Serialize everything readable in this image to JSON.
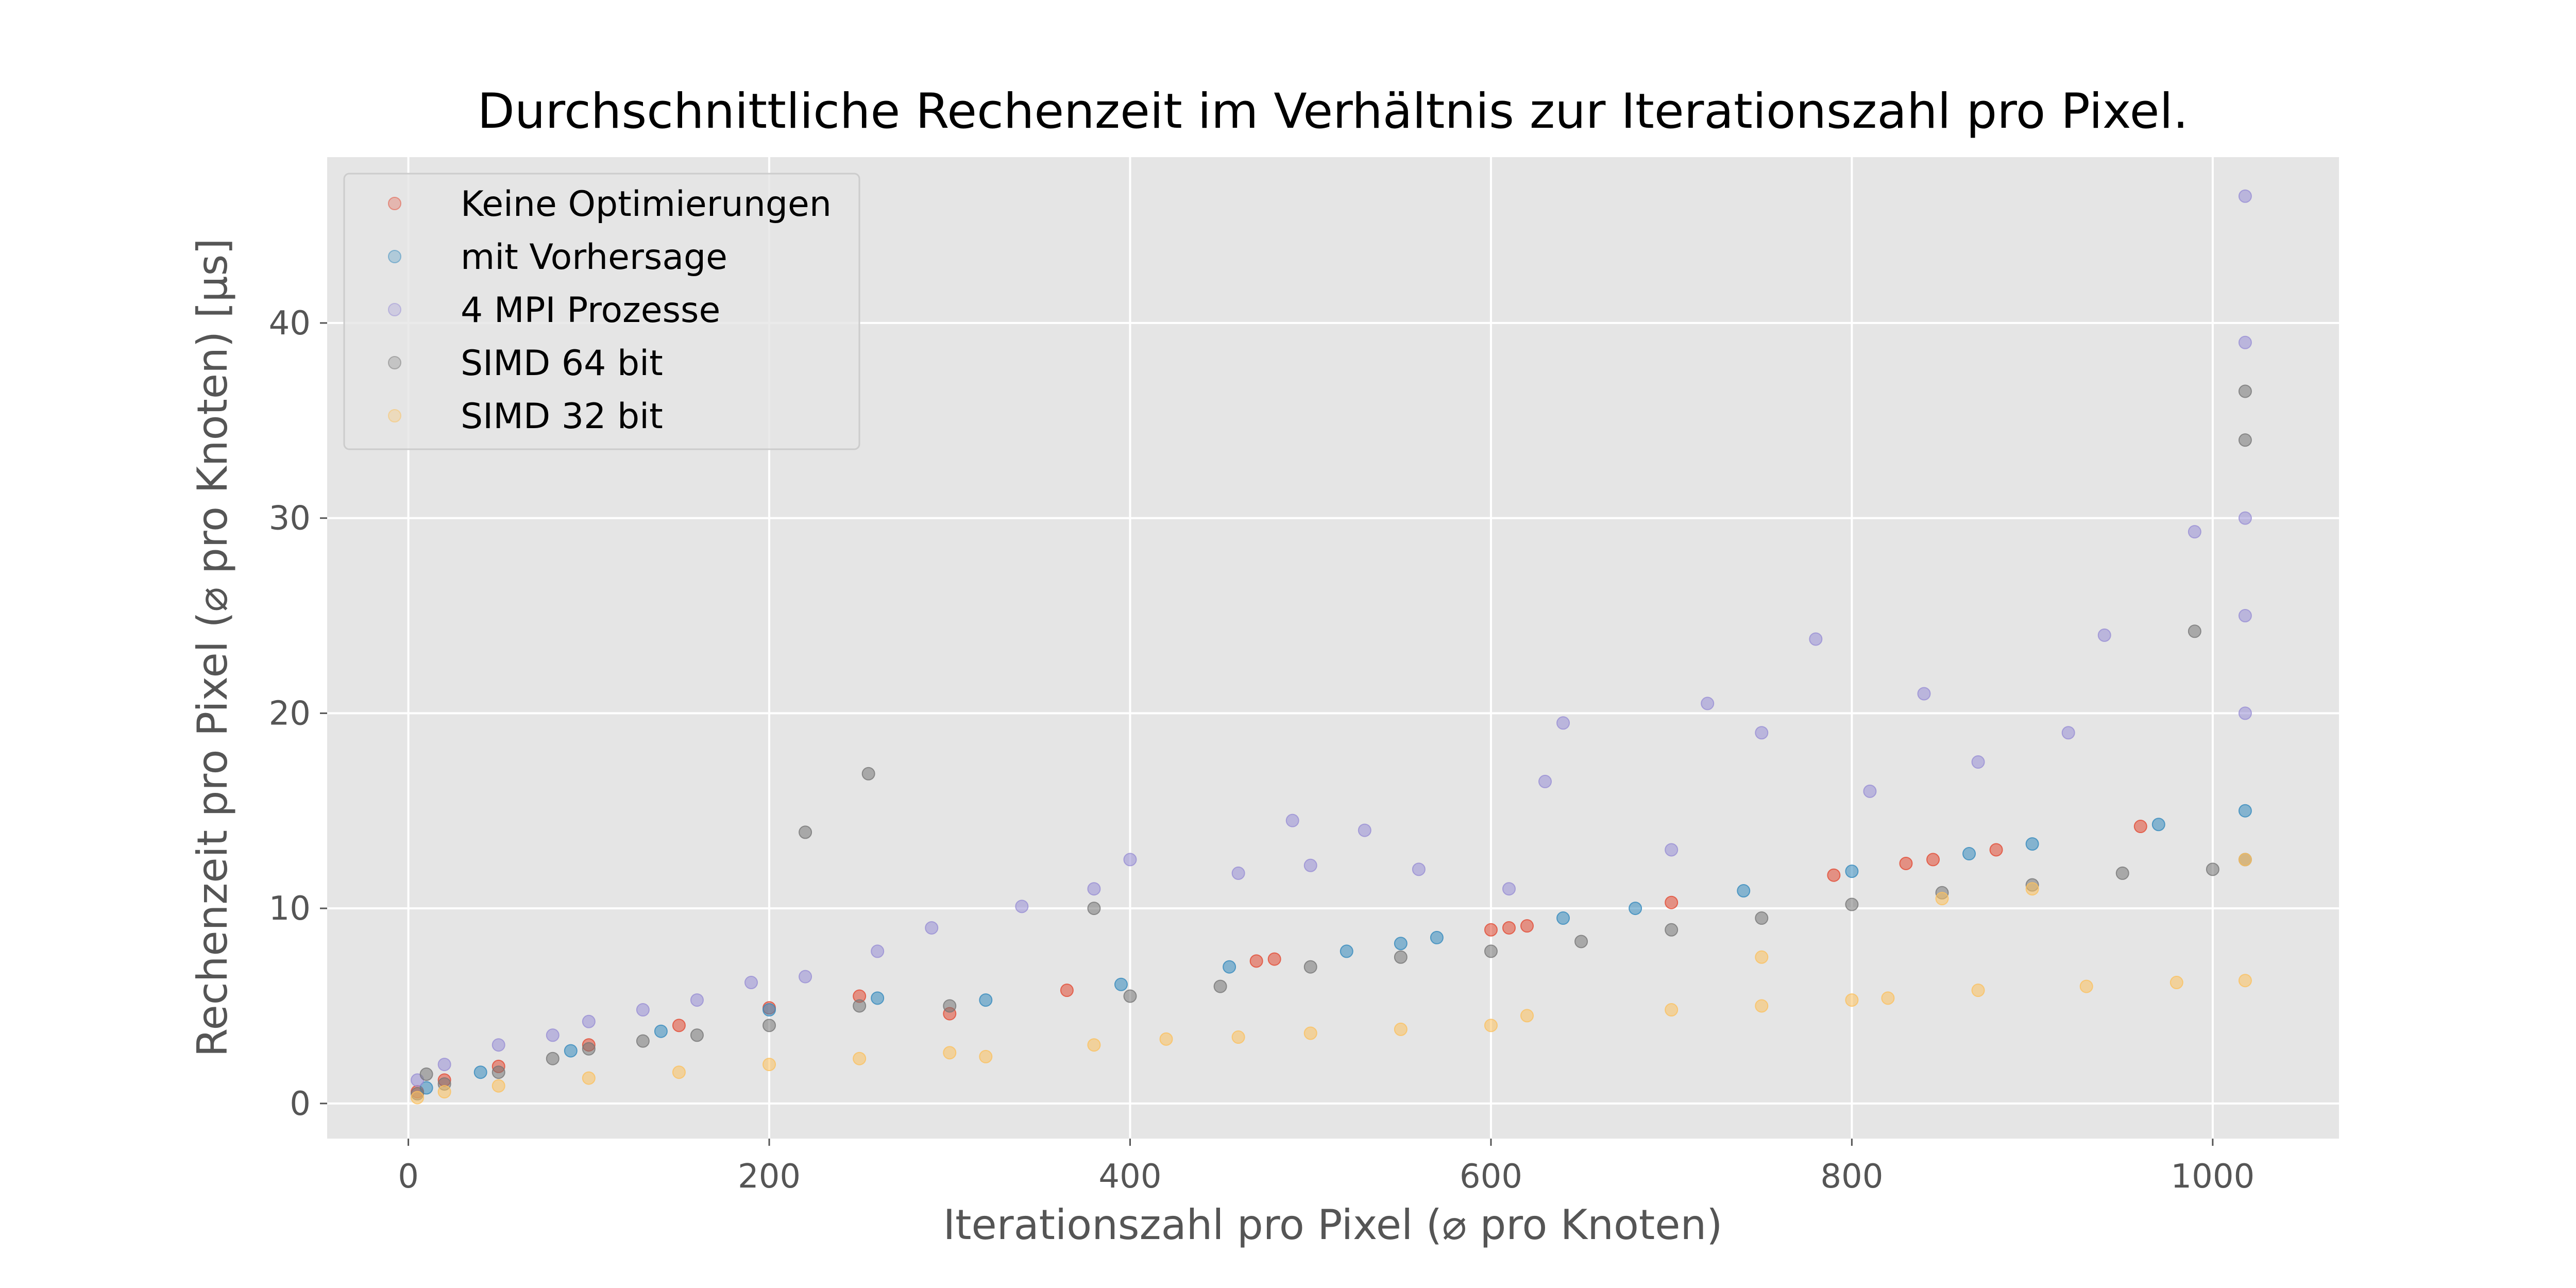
{
  "chart_data": {
    "type": "scatter",
    "title": "Durchschnittliche Rechenzeit im Verhältnis zur Iterationszahl pro Pixel.",
    "xlabel": "Iterationszahl pro Pixel (⌀ pro Knoten)",
    "ylabel": "Rechenzeit pro Pixel (⌀ pro Knoten) [µs]",
    "xlim": [
      -45,
      1070
    ],
    "ylim": [
      -1.8,
      48.5
    ],
    "xticks": [
      0,
      200,
      400,
      600,
      800,
      1000
    ],
    "yticks": [
      0,
      10,
      20,
      30,
      40
    ],
    "grid": true,
    "legend_position": "top-left",
    "style": {
      "plot_background": "#e5e5e5",
      "grid_color": "#ffffff",
      "text_color": "#555555",
      "title_color": "#000000"
    },
    "series": [
      {
        "name": "Keine Optimierungen",
        "color": "#e24a33",
        "points": [
          [
            5,
            0.6
          ],
          [
            20,
            1.2
          ],
          [
            50,
            1.9
          ],
          [
            100,
            3.0
          ],
          [
            150,
            4.0
          ],
          [
            200,
            4.9
          ],
          [
            250,
            5.5
          ],
          [
            300,
            4.6
          ],
          [
            365,
            5.8
          ],
          [
            470,
            7.3
          ],
          [
            480,
            7.4
          ],
          [
            600,
            8.9
          ],
          [
            610,
            9.0
          ],
          [
            620,
            9.1
          ],
          [
            700,
            10.3
          ],
          [
            790,
            11.7
          ],
          [
            830,
            12.3
          ],
          [
            845,
            12.5
          ],
          [
            880,
            13.0
          ],
          [
            960,
            14.2
          ]
        ]
      },
      {
        "name": "mit Vorhersage",
        "color": "#348abd",
        "points": [
          [
            10,
            0.8
          ],
          [
            40,
            1.6
          ],
          [
            90,
            2.7
          ],
          [
            140,
            3.7
          ],
          [
            200,
            4.8
          ],
          [
            260,
            5.4
          ],
          [
            320,
            5.3
          ],
          [
            395,
            6.1
          ],
          [
            455,
            7.0
          ],
          [
            520,
            7.8
          ],
          [
            550,
            8.2
          ],
          [
            570,
            8.5
          ],
          [
            640,
            9.5
          ],
          [
            680,
            10.0
          ],
          [
            740,
            10.9
          ],
          [
            800,
            11.9
          ],
          [
            865,
            12.8
          ],
          [
            900,
            13.3
          ],
          [
            970,
            14.3
          ],
          [
            1018,
            15.0
          ]
        ]
      },
      {
        "name": "4 MPI Prozesse",
        "color": "#988ed5",
        "points": [
          [
            5,
            1.2
          ],
          [
            20,
            2.0
          ],
          [
            50,
            3.0
          ],
          [
            80,
            3.5
          ],
          [
            100,
            4.2
          ],
          [
            130,
            4.8
          ],
          [
            160,
            5.3
          ],
          [
            190,
            6.2
          ],
          [
            220,
            6.5
          ],
          [
            260,
            7.8
          ],
          [
            290,
            9.0
          ],
          [
            340,
            10.1
          ],
          [
            380,
            11.0
          ],
          [
            400,
            12.5
          ],
          [
            460,
            11.8
          ],
          [
            490,
            14.5
          ],
          [
            500,
            12.2
          ],
          [
            530,
            14.0
          ],
          [
            560,
            12.0
          ],
          [
            610,
            11.0
          ],
          [
            630,
            16.5
          ],
          [
            640,
            19.5
          ],
          [
            700,
            13.0
          ],
          [
            720,
            20.5
          ],
          [
            750,
            19.0
          ],
          [
            780,
            23.8
          ],
          [
            810,
            16.0
          ],
          [
            840,
            21.0
          ],
          [
            870,
            17.5
          ],
          [
            920,
            19.0
          ],
          [
            940,
            24.0
          ],
          [
            990,
            29.3
          ],
          [
            1018,
            46.5
          ],
          [
            1018,
            39.0
          ],
          [
            1018,
            30.0
          ],
          [
            1018,
            25.0
          ],
          [
            1018,
            20.0
          ]
        ]
      },
      {
        "name": "SIMD 64 bit",
        "color": "#777777",
        "points": [
          [
            5,
            0.5
          ],
          [
            10,
            1.5
          ],
          [
            20,
            1.0
          ],
          [
            50,
            1.6
          ],
          [
            80,
            2.3
          ],
          [
            100,
            2.8
          ],
          [
            130,
            3.2
          ],
          [
            160,
            3.5
          ],
          [
            200,
            4.0
          ],
          [
            220,
            13.9
          ],
          [
            250,
            5.0
          ],
          [
            255,
            16.9
          ],
          [
            300,
            5.0
          ],
          [
            380,
            10.0
          ],
          [
            400,
            5.5
          ],
          [
            450,
            6.0
          ],
          [
            500,
            7.0
          ],
          [
            550,
            7.5
          ],
          [
            600,
            7.8
          ],
          [
            650,
            8.3
          ],
          [
            700,
            8.9
          ],
          [
            750,
            9.5
          ],
          [
            800,
            10.2
          ],
          [
            850,
            10.8
          ],
          [
            900,
            11.2
          ],
          [
            950,
            11.8
          ],
          [
            990,
            24.2
          ],
          [
            1000,
            12.0
          ],
          [
            1018,
            12.5
          ],
          [
            1018,
            36.5
          ],
          [
            1018,
            34.0
          ]
        ]
      },
      {
        "name": "SIMD 32 bit",
        "color": "#fbc15e",
        "points": [
          [
            5,
            0.3
          ],
          [
            20,
            0.6
          ],
          [
            50,
            0.9
          ],
          [
            100,
            1.3
          ],
          [
            150,
            1.6
          ],
          [
            200,
            2.0
          ],
          [
            250,
            2.3
          ],
          [
            300,
            2.6
          ],
          [
            320,
            2.4
          ],
          [
            380,
            3.0
          ],
          [
            420,
            3.3
          ],
          [
            460,
            3.4
          ],
          [
            500,
            3.6
          ],
          [
            550,
            3.8
          ],
          [
            600,
            4.0
          ],
          [
            620,
            4.5
          ],
          [
            700,
            4.8
          ],
          [
            750,
            5.0
          ],
          [
            800,
            5.3
          ],
          [
            820,
            5.4
          ],
          [
            870,
            5.8
          ],
          [
            930,
            6.0
          ],
          [
            980,
            6.2
          ],
          [
            1018,
            6.3
          ],
          [
            1018,
            12.5
          ],
          [
            750,
            7.5
          ],
          [
            850,
            10.5
          ],
          [
            900,
            11.0
          ]
        ]
      }
    ]
  }
}
